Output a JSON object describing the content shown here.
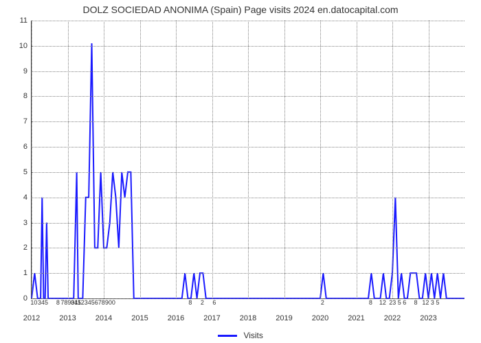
{
  "chart": {
    "type": "line",
    "title": "DOLZ SOCIEDAD ANONIMA (Spain) Page visits 2024 en.datocapital.com",
    "title_fontsize": 14,
    "title_color": "#333333",
    "background_color": "#ffffff",
    "grid_color": "#808080",
    "axis_color": "#333333",
    "tick_font_color": "#333333",
    "tick_fontsize": 11,
    "line_color": "#1919FF",
    "line_width": 2,
    "ylim": [
      0,
      11
    ],
    "ytick_step": 1,
    "yticks": [
      0,
      1,
      2,
      3,
      4,
      5,
      6,
      7,
      8,
      9,
      10,
      11
    ],
    "xlim": [
      0,
      144
    ],
    "xticks_major": [
      {
        "pos": 0,
        "label": "2012"
      },
      {
        "pos": 12,
        "label": "2013"
      },
      {
        "pos": 24,
        "label": "2014"
      },
      {
        "pos": 36,
        "label": "2015"
      },
      {
        "pos": 48,
        "label": "2016"
      },
      {
        "pos": 60,
        "label": "2017"
      },
      {
        "pos": 72,
        "label": "2018"
      },
      {
        "pos": 84,
        "label": "2019"
      },
      {
        "pos": 96,
        "label": "2020"
      },
      {
        "pos": 108,
        "label": "2021"
      },
      {
        "pos": 120,
        "label": "2022"
      },
      {
        "pos": 132,
        "label": "2023"
      }
    ],
    "xticks_minor": [
      {
        "pos": 1,
        "label": "10"
      },
      {
        "pos": 4,
        "label": "345"
      },
      {
        "pos": 9,
        "label": "8"
      },
      {
        "pos": 15,
        "label": "345"
      },
      {
        "pos": 19,
        "label": "7890112345678900"
      },
      {
        "pos": 53,
        "label": "8"
      },
      {
        "pos": 57,
        "label": "2"
      },
      {
        "pos": 61,
        "label": "6"
      },
      {
        "pos": 97,
        "label": "2"
      },
      {
        "pos": 113,
        "label": "8"
      },
      {
        "pos": 117,
        "label": "12"
      },
      {
        "pos": 122,
        "label": "23 5 6"
      },
      {
        "pos": 128,
        "label": "8"
      },
      {
        "pos": 133,
        "label": "12 3 5"
      }
    ],
    "series": {
      "name": "Visits",
      "color": "#1919FF",
      "points_x": [
        0,
        1,
        2,
        3,
        3.5,
        4,
        4.5,
        5,
        5.5,
        6,
        7,
        8,
        9,
        10,
        11,
        12,
        13,
        14,
        15,
        15.5,
        16,
        17,
        18,
        19,
        20,
        21,
        22,
        23,
        24,
        25,
        26,
        27,
        28,
        29,
        30,
        31,
        32,
        33,
        34,
        35,
        36,
        37,
        38,
        39,
        40,
        41,
        50,
        51,
        52,
        53,
        54,
        55,
        56,
        57,
        58,
        59,
        60,
        61,
        62,
        63,
        80,
        95,
        96,
        97,
        98,
        99,
        106,
        112,
        113,
        114,
        115,
        116,
        117,
        118,
        119,
        120,
        121,
        122,
        123,
        124,
        125,
        126,
        127,
        128,
        129,
        130,
        131,
        132,
        133,
        134,
        135,
        136,
        137,
        138,
        144
      ],
      "points_y": [
        0,
        1,
        0,
        0,
        4,
        0,
        0,
        3,
        0,
        0,
        0,
        0,
        0,
        0,
        0,
        0,
        0,
        0,
        5,
        0,
        0,
        0,
        4,
        4,
        10.1,
        2,
        2,
        5,
        2,
        2,
        3,
        5,
        4,
        2,
        5,
        4,
        5,
        5,
        0,
        0,
        0,
        0,
        0,
        0,
        0,
        0,
        0,
        1,
        0,
        0,
        1,
        0,
        1,
        1,
        0,
        0,
        0,
        0,
        0,
        0,
        0,
        0,
        0,
        1,
        0,
        0,
        0,
        0,
        1,
        0,
        0,
        0,
        1,
        0,
        0,
        1,
        4,
        0,
        1,
        0,
        0,
        1,
        1,
        1,
        0,
        0,
        1,
        0,
        1,
        0,
        1,
        0,
        1,
        0,
        0
      ]
    },
    "legend": {
      "label": "Visits",
      "swatch_color": "#1919FF",
      "position": "bottom-center",
      "fontsize": 12
    }
  }
}
